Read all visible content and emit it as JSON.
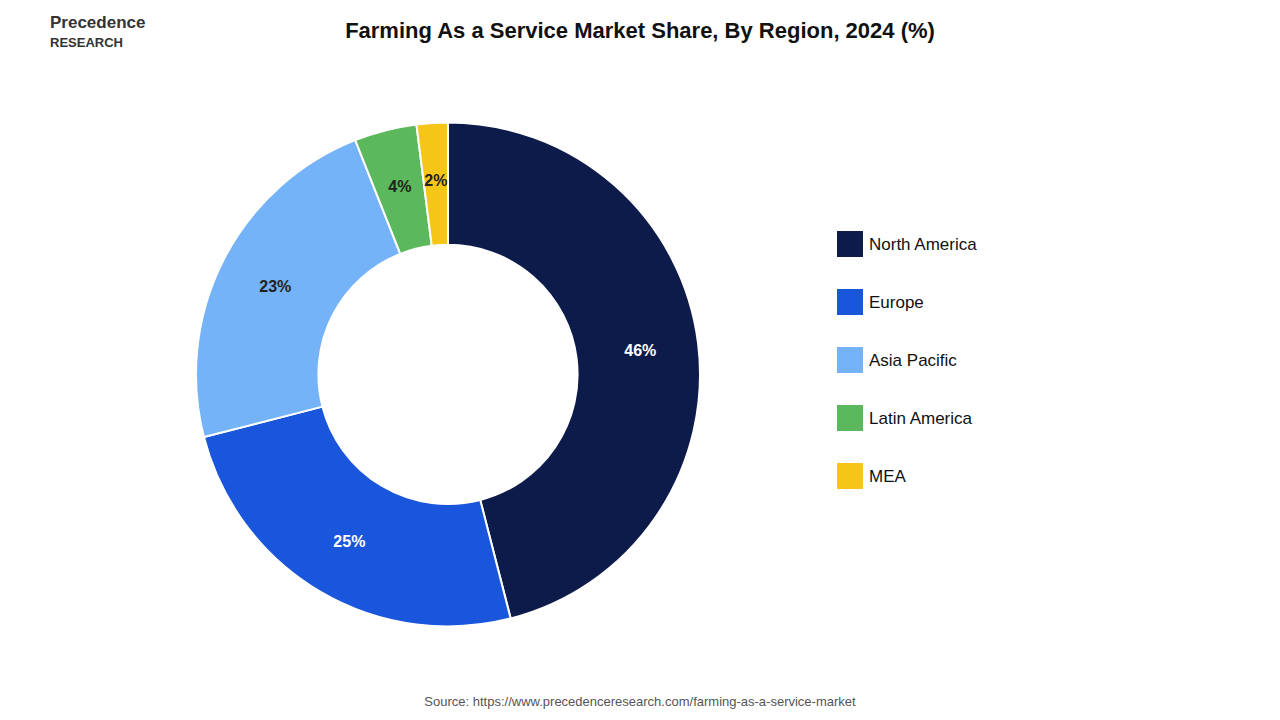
{
  "chart_data": {
    "type": "donut",
    "title": "Farming As a Service Market Share, By Region, 2024 (%)",
    "categories": [
      "North America",
      "Europe",
      "Asia Pacific",
      "Latin America",
      "MEA"
    ],
    "values": [
      46,
      25,
      23,
      4,
      2
    ],
    "value_labels": [
      "46%",
      "25%",
      "23%",
      "4%",
      "2%"
    ],
    "colors": [
      "#0d1b4b",
      "#1a56db",
      "#74b3f7",
      "#5cb85c",
      "#f5c518"
    ],
    "data_labels": true,
    "legend": "right",
    "annotations": [
      "Precedence",
      "RESEARCH",
      "Source: https://www.precedenceresearch.com/farming-as-a-service-market"
    ]
  }
}
